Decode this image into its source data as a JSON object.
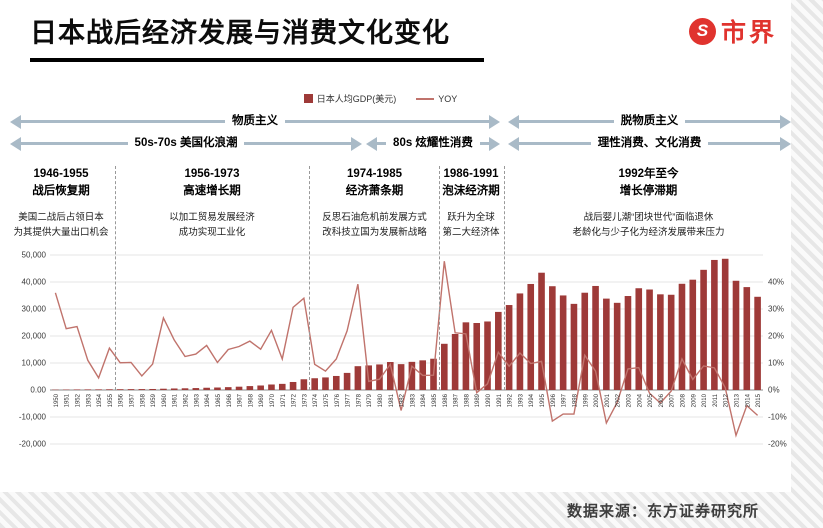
{
  "header": {
    "title": "日本战后经济发展与消费文化变化",
    "logo_text": "市界",
    "logo_icon_glyph": "S"
  },
  "footer": {
    "source": "数据来源：东方证券研究所"
  },
  "legend": {
    "gdp_label": "日本人均GDP(美元)",
    "yoy_label": "YOY"
  },
  "arrows": {
    "materialism": "物质主义",
    "post_materialism": "脱物质主义",
    "americanization": "50s-70s 美国化浪潮",
    "conspicuous": "80s 炫耀性消费",
    "rational": "理性消费、文化消费"
  },
  "periods": [
    {
      "title_line1": "1946-1955",
      "title_line2": "战后恢复期",
      "body_line1": "美国二战后占领日本",
      "body_line2": "为其提供大量出口机会"
    },
    {
      "title_line1": "1956-1973",
      "title_line2": "高速增长期",
      "body_line1": "以加工贸易发展经济",
      "body_line2": "成功实现工业化"
    },
    {
      "title_line1": "1974-1985",
      "title_line2": "经济萧条期",
      "body_line1": "反思石油危机前发展方式",
      "body_line2": "改科技立国为发展新战略"
    },
    {
      "title_line1": "1986-1991",
      "title_line2": "泡沫经济期",
      "body_line1": "跃升为全球",
      "body_line2": "第二大经济体"
    },
    {
      "title_line1": "1992年至今",
      "title_line2": "增长停滞期",
      "body_line1": "战后婴儿潮“团块世代”面临退休",
      "body_line2": "老龄化与少子化为经济发展带来压力"
    }
  ],
  "colors": {
    "bar": "#9e3a38",
    "line": "#c0736c",
    "arrow": "#a9bac7",
    "accent_red": "#e0332e",
    "grid": "#dcdcdc",
    "zero_line": "#8a8a8a"
  },
  "chart_data": {
    "type": "bar",
    "title": "日本战后经济发展与消费文化变化",
    "xlabel": "",
    "ylabel": "",
    "grid": true,
    "legend_position": "top-center",
    "x": [
      1950,
      1951,
      1952,
      1953,
      1954,
      1955,
      1956,
      1957,
      1958,
      1959,
      1960,
      1961,
      1962,
      1963,
      1964,
      1965,
      1966,
      1967,
      1968,
      1969,
      1970,
      1971,
      1972,
      1973,
      1974,
      1975,
      1976,
      1977,
      1978,
      1979,
      1980,
      1981,
      1982,
      1983,
      1984,
      1985,
      1986,
      1987,
      1988,
      1989,
      1990,
      1991,
      1992,
      1993,
      1994,
      1995,
      1996,
      1997,
      1998,
      1999,
      2000,
      2001,
      2002,
      2003,
      2004,
      2005,
      2006,
      2007,
      2008,
      2009,
      2010,
      2011,
      2012,
      2013,
      2014,
      2015
    ],
    "series": [
      {
        "name": "日本人均GDP(美元)",
        "type": "bar",
        "axis": "left",
        "values": [
          132,
          162,
          200,
          222,
          232,
          268,
          295,
          325,
          342,
          375,
          475,
          563,
          633,
          717,
          835,
          920,
          1058,
          1228,
          1450,
          1669,
          2038,
          2272,
          2967,
          3975,
          4354,
          4659,
          5197,
          6335,
          8821,
          9105,
          9465,
          10361,
          9578,
          10425,
          10984,
          11585,
          17112,
          20745,
          25059,
          24813,
          25380,
          28925,
          31465,
          35766,
          39269,
          43440,
          38437,
          35022,
          31903,
          36027,
          38532,
          33846,
          32289,
          34808,
          37689,
          37218,
          35434,
          35275,
          39339,
          40855,
          44508,
          48168,
          48603,
          40454,
          38109,
          34524
        ]
      },
      {
        "name": "YOY",
        "type": "line",
        "axis": "right",
        "values": [
          36,
          22.7,
          23.5,
          11,
          4.5,
          15.5,
          10.1,
          10.2,
          5.2,
          9.6,
          26.7,
          18.5,
          12.4,
          13.3,
          16.5,
          10.2,
          15,
          16.1,
          18.1,
          15.1,
          22.1,
          11.5,
          30.6,
          34,
          9.5,
          7,
          11.5,
          21.9,
          39.2,
          3.2,
          4,
          9.5,
          -7.6,
          8.8,
          5.4,
          5.5,
          47.7,
          21.2,
          20.8,
          -1,
          2.3,
          14,
          8.8,
          13.7,
          9.8,
          10.6,
          -11.5,
          -8.9,
          -8.9,
          12.9,
          7,
          -12.2,
          -4.6,
          7.8,
          8.3,
          -1.2,
          -4.8,
          -0.4,
          11.5,
          3.9,
          8.9,
          8.2,
          0.9,
          -16.8,
          -5.8,
          -9.4
        ]
      }
    ],
    "left_axis": {
      "min": -20000,
      "max": 50000,
      "ticks": [
        "50,000",
        "40,000",
        "30,000",
        "20,000",
        "10,000",
        "0.00",
        "-10,000",
        "-20,000"
      ]
    },
    "right_axis": {
      "min": -20,
      "max": 40,
      "ticks": [
        "40%",
        "30%",
        "20%",
        "10%",
        "0%",
        "-10%",
        "-20%"
      ]
    },
    "period_boundaries_after_years": [
      1955,
      1973,
      1985,
      1991
    ]
  }
}
